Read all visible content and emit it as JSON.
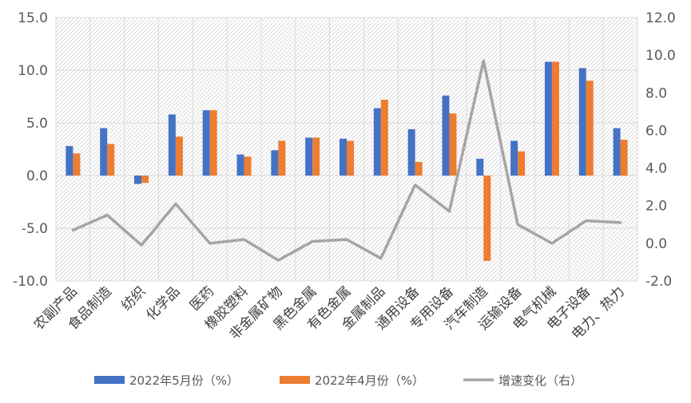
{
  "chart_data": {
    "type": "bar",
    "categories": [
      "农副产品",
      "食品制造",
      "纺织",
      "化学品",
      "医药",
      "橡胶塑料",
      "非金属矿物",
      "黑色金属",
      "有色金属",
      "金属制品",
      "通用设备",
      "专用设备",
      "汽车制造",
      "运输设备",
      "电气机械",
      "电子设备",
      "电力、热力"
    ],
    "series": [
      {
        "name": "2022年5月份（%）",
        "axis": "left",
        "render": "bar",
        "color": "#4472C4",
        "values": [
          2.8,
          4.5,
          -0.8,
          5.8,
          6.2,
          2.0,
          2.4,
          3.6,
          3.5,
          6.4,
          4.4,
          7.6,
          1.6,
          3.3,
          10.8,
          10.2,
          4.5
        ]
      },
      {
        "name": "2022年4月份（%）",
        "axis": "left",
        "render": "bar",
        "color": "#ED7D31",
        "values": [
          2.1,
          3.0,
          -0.7,
          3.7,
          6.2,
          1.8,
          3.3,
          3.6,
          3.3,
          7.2,
          1.3,
          5.9,
          -8.1,
          2.3,
          10.8,
          9.0,
          3.4
        ]
      },
      {
        "name": "增速变化（右）",
        "axis": "right",
        "render": "line",
        "color": "#A5A5A5",
        "values": [
          0.7,
          1.5,
          -0.1,
          2.1,
          0.0,
          0.2,
          -0.9,
          0.1,
          0.2,
          -0.8,
          3.1,
          1.7,
          9.7,
          1.0,
          0.0,
          1.2,
          1.1
        ]
      }
    ],
    "y_left": {
      "ylim": [
        -10.0,
        15.0
      ],
      "ticks": [
        "-10.0",
        "-5.0",
        "0.0",
        "5.0",
        "10.0",
        "15.0"
      ]
    },
    "y_right": {
      "ylim": [
        -2.0,
        12.0
      ],
      "ticks": [
        "-2.0",
        "0.0",
        "2.0",
        "4.0",
        "6.0",
        "8.0",
        "10.0",
        "12.0"
      ]
    },
    "grid": true,
    "legend_position": "bottom"
  }
}
